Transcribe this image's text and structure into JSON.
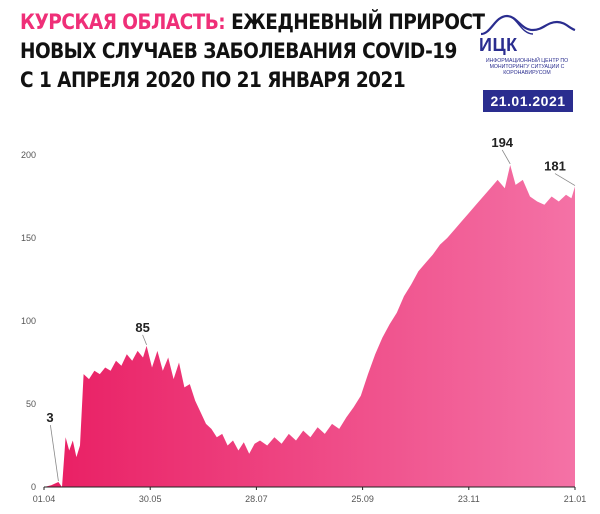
{
  "header": {
    "title_accent": "КУРСКАЯ ОБЛАСТЬ:",
    "title_rest": " ЕЖЕДНЕВНЫЙ ПРИРОСТ",
    "title_line2": "НОВЫХ СЛУЧАЕВ ЗАБОЛЕВАНИЯ COVID-19",
    "title_line3": "С 1 АПРЕЛЯ 2020 ПО 21 ЯНВАРЯ 2021"
  },
  "logo": {
    "name": "ИЦК",
    "subtitle": "ИНФОРМАЦИОННЫЙ ЦЕНТР ПО МОНИТОРИНГУ СИТУАЦИИ С КОРОНАВИРУСОМ"
  },
  "date_badge": "21.01.2021",
  "colors": {
    "accent": "#ef2f78",
    "brand": "#2a2d8f",
    "area_start": "#e91e63",
    "area_end": "#f472a6"
  },
  "chart_data": {
    "type": "area",
    "title": "",
    "xlabel": "",
    "ylabel": "",
    "x_tick_labels": [
      "01.04",
      "30.05",
      "28.07",
      "25.09",
      "23.11",
      "21.01"
    ],
    "y_ticks": [
      0,
      50,
      100,
      150,
      200
    ],
    "ylim": [
      0,
      210
    ],
    "grid": false,
    "x_start": "2020-04-01",
    "x_end": "2021-01-21",
    "series": [
      {
        "name": "",
        "points": [
          [
            "2020-04-01",
            0
          ],
          [
            "2020-04-05",
            1
          ],
          [
            "2020-04-09",
            3
          ],
          [
            "2020-04-11",
            0
          ],
          [
            "2020-04-13",
            30
          ],
          [
            "2020-04-15",
            22
          ],
          [
            "2020-04-17",
            28
          ],
          [
            "2020-04-19",
            18
          ],
          [
            "2020-04-21",
            25
          ],
          [
            "2020-04-23",
            68
          ],
          [
            "2020-04-26",
            65
          ],
          [
            "2020-04-29",
            70
          ],
          [
            "2020-05-02",
            68
          ],
          [
            "2020-05-05",
            72
          ],
          [
            "2020-05-08",
            70
          ],
          [
            "2020-05-11",
            76
          ],
          [
            "2020-05-14",
            73
          ],
          [
            "2020-05-17",
            80
          ],
          [
            "2020-05-20",
            76
          ],
          [
            "2020-05-23",
            82
          ],
          [
            "2020-05-26",
            78
          ],
          [
            "2020-05-28",
            85
          ],
          [
            "2020-05-31",
            72
          ],
          [
            "2020-06-03",
            82
          ],
          [
            "2020-06-06",
            70
          ],
          [
            "2020-06-09",
            78
          ],
          [
            "2020-06-12",
            65
          ],
          [
            "2020-06-15",
            75
          ],
          [
            "2020-06-18",
            60
          ],
          [
            "2020-06-21",
            62
          ],
          [
            "2020-06-24",
            52
          ],
          [
            "2020-06-27",
            45
          ],
          [
            "2020-06-30",
            38
          ],
          [
            "2020-07-03",
            35
          ],
          [
            "2020-07-06",
            30
          ],
          [
            "2020-07-09",
            32
          ],
          [
            "2020-07-12",
            25
          ],
          [
            "2020-07-15",
            28
          ],
          [
            "2020-07-18",
            22
          ],
          [
            "2020-07-21",
            27
          ],
          [
            "2020-07-24",
            20
          ],
          [
            "2020-07-27",
            26
          ],
          [
            "2020-07-30",
            28
          ],
          [
            "2020-08-03",
            25
          ],
          [
            "2020-08-07",
            30
          ],
          [
            "2020-08-11",
            26
          ],
          [
            "2020-08-15",
            32
          ],
          [
            "2020-08-19",
            28
          ],
          [
            "2020-08-23",
            34
          ],
          [
            "2020-08-27",
            30
          ],
          [
            "2020-08-31",
            36
          ],
          [
            "2020-09-04",
            32
          ],
          [
            "2020-09-08",
            38
          ],
          [
            "2020-09-12",
            35
          ],
          [
            "2020-09-16",
            42
          ],
          [
            "2020-09-20",
            48
          ],
          [
            "2020-09-24",
            55
          ],
          [
            "2020-09-28",
            68
          ],
          [
            "2020-10-02",
            80
          ],
          [
            "2020-10-06",
            90
          ],
          [
            "2020-10-10",
            98
          ],
          [
            "2020-10-14",
            105
          ],
          [
            "2020-10-18",
            115
          ],
          [
            "2020-10-22",
            122
          ],
          [
            "2020-10-26",
            130
          ],
          [
            "2020-10-30",
            135
          ],
          [
            "2020-11-03",
            140
          ],
          [
            "2020-11-07",
            146
          ],
          [
            "2020-11-11",
            150
          ],
          [
            "2020-11-15",
            155
          ],
          [
            "2020-11-19",
            160
          ],
          [
            "2020-11-23",
            165
          ],
          [
            "2020-11-27",
            170
          ],
          [
            "2020-12-01",
            175
          ],
          [
            "2020-12-05",
            180
          ],
          [
            "2020-12-09",
            185
          ],
          [
            "2020-12-13",
            180
          ],
          [
            "2020-12-16",
            194
          ],
          [
            "2020-12-19",
            182
          ],
          [
            "2020-12-23",
            185
          ],
          [
            "2020-12-27",
            175
          ],
          [
            "2020-12-31",
            172
          ],
          [
            "2021-01-04",
            170
          ],
          [
            "2021-01-08",
            175
          ],
          [
            "2021-01-12",
            172
          ],
          [
            "2021-01-16",
            176
          ],
          [
            "2021-01-19",
            174
          ],
          [
            "2021-01-21",
            181
          ]
        ]
      }
    ],
    "annotations": [
      {
        "date": "2020-04-09",
        "value": 3,
        "label": "3"
      },
      {
        "date": "2020-05-28",
        "value": 85,
        "label": "85"
      },
      {
        "date": "2020-12-16",
        "value": 194,
        "label": "194"
      },
      {
        "date": "2021-01-21",
        "value": 181,
        "label": "181"
      }
    ]
  }
}
